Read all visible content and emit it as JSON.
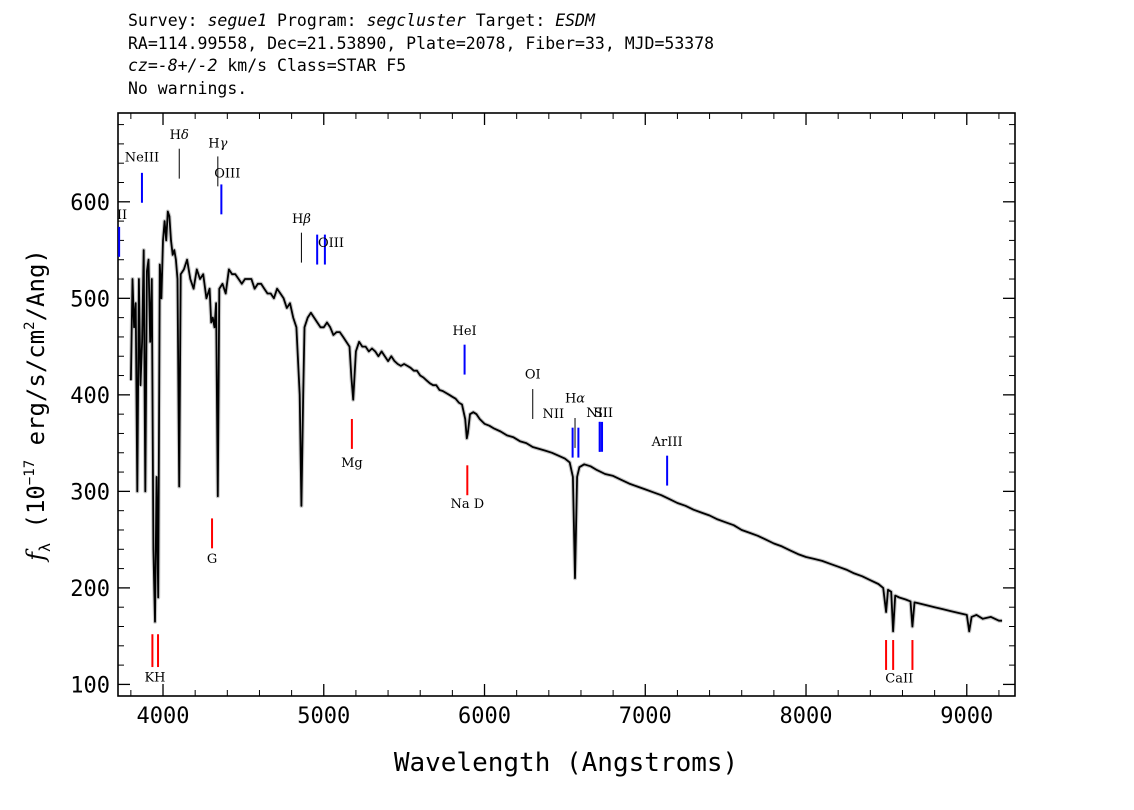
{
  "header": {
    "survey_label": "Survey: ",
    "survey": "segue1",
    "program_label": " Program: ",
    "program": "segcluster",
    "target_label": " Target: ",
    "target": "ESDM",
    "line2": "RA=114.99558, Dec=21.53890, Plate=2078, Fiber=33, MJD=53378",
    "cz_label": "cz",
    "cz_value": "=-8+/-2",
    "cz_rest": " km/s Class=STAR F5",
    "line4": "No warnings."
  },
  "chart_data": {
    "type": "line",
    "title": "",
    "xlabel": "Wavelength (Angstroms)",
    "ylabel_prefix": "f",
    "ylabel_sub": "λ",
    "ylabel_main": " (10",
    "ylabel_exp": "−17",
    "ylabel_mid": " erg/s/cm",
    "ylabel_exp2": "2",
    "ylabel_end": "/Ang)",
    "xlim": [
      3720,
      9300
    ],
    "ylim": [
      88,
      692
    ],
    "grid": false,
    "xticks": [
      4000,
      5000,
      6000,
      7000,
      8000,
      9000
    ],
    "xtick_labels": [
      "4000",
      "5000",
      "6000",
      "7000",
      "8000",
      "9000"
    ],
    "yticks": [
      100,
      200,
      300,
      400,
      500,
      600
    ],
    "ytick_labels": [
      "100",
      "200",
      "300",
      "400",
      "500",
      "600"
    ],
    "series": [
      {
        "color": "#000000",
        "points": [
          [
            3800,
            415
          ],
          [
            3810,
            520
          ],
          [
            3820,
            470
          ],
          [
            3830,
            495
          ],
          [
            3840,
            300
          ],
          [
            3850,
            520
          ],
          [
            3860,
            410
          ],
          [
            3870,
            455
          ],
          [
            3880,
            550
          ],
          [
            3890,
            300
          ],
          [
            3900,
            528
          ],
          [
            3910,
            540
          ],
          [
            3920,
            455
          ],
          [
            3930,
            520
          ],
          [
            3940,
            240
          ],
          [
            3950,
            165
          ],
          [
            3960,
            315
          ],
          [
            3970,
            190
          ],
          [
            3980,
            535
          ],
          [
            3990,
            500
          ],
          [
            4000,
            560
          ],
          [
            4010,
            580
          ],
          [
            4020,
            560
          ],
          [
            4030,
            590
          ],
          [
            4040,
            585
          ],
          [
            4050,
            560
          ],
          [
            4060,
            545
          ],
          [
            4070,
            550
          ],
          [
            4080,
            540
          ],
          [
            4090,
            520
          ],
          [
            4101,
            305
          ],
          [
            4110,
            525
          ],
          [
            4130,
            530
          ],
          [
            4150,
            540
          ],
          [
            4170,
            520
          ],
          [
            4190,
            510
          ],
          [
            4210,
            530
          ],
          [
            4230,
            520
          ],
          [
            4250,
            525
          ],
          [
            4270,
            500
          ],
          [
            4290,
            510
          ],
          [
            4300,
            475
          ],
          [
            4310,
            480
          ],
          [
            4320,
            470
          ],
          [
            4330,
            495
          ],
          [
            4341,
            295
          ],
          [
            4350,
            510
          ],
          [
            4370,
            515
          ],
          [
            4390,
            505
          ],
          [
            4410,
            530
          ],
          [
            4430,
            525
          ],
          [
            4450,
            525
          ],
          [
            4470,
            520
          ],
          [
            4490,
            515
          ],
          [
            4510,
            520
          ],
          [
            4530,
            520
          ],
          [
            4550,
            520
          ],
          [
            4570,
            510
          ],
          [
            4590,
            515
          ],
          [
            4610,
            515
          ],
          [
            4630,
            510
          ],
          [
            4650,
            505
          ],
          [
            4670,
            505
          ],
          [
            4690,
            500
          ],
          [
            4710,
            510
          ],
          [
            4730,
            505
          ],
          [
            4750,
            500
          ],
          [
            4770,
            490
          ],
          [
            4790,
            495
          ],
          [
            4810,
            480
          ],
          [
            4830,
            470
          ],
          [
            4850,
            400
          ],
          [
            4861,
            285
          ],
          [
            4872,
            400
          ],
          [
            4880,
            470
          ],
          [
            4900,
            480
          ],
          [
            4920,
            485
          ],
          [
            4940,
            480
          ],
          [
            4960,
            475
          ],
          [
            4980,
            470
          ],
          [
            5000,
            470
          ],
          [
            5020,
            475
          ],
          [
            5040,
            470
          ],
          [
            5060,
            462
          ],
          [
            5080,
            465
          ],
          [
            5100,
            465
          ],
          [
            5120,
            460
          ],
          [
            5140,
            455
          ],
          [
            5160,
            450
          ],
          [
            5172,
            418
          ],
          [
            5183,
            395
          ],
          [
            5200,
            445
          ],
          [
            5220,
            455
          ],
          [
            5240,
            450
          ],
          [
            5260,
            450
          ],
          [
            5280,
            445
          ],
          [
            5300,
            448
          ],
          [
            5320,
            445
          ],
          [
            5340,
            440
          ],
          [
            5360,
            445
          ],
          [
            5380,
            440
          ],
          [
            5400,
            435
          ],
          [
            5420,
            440
          ],
          [
            5440,
            435
          ],
          [
            5460,
            432
          ],
          [
            5480,
            430
          ],
          [
            5500,
            432
          ],
          [
            5520,
            430
          ],
          [
            5540,
            428
          ],
          [
            5560,
            425
          ],
          [
            5580,
            425
          ],
          [
            5600,
            420
          ],
          [
            5620,
            418
          ],
          [
            5640,
            415
          ],
          [
            5660,
            412
          ],
          [
            5680,
            410
          ],
          [
            5700,
            410
          ],
          [
            5720,
            405
          ],
          [
            5740,
            404
          ],
          [
            5760,
            402
          ],
          [
            5780,
            400
          ],
          [
            5800,
            398
          ],
          [
            5820,
            396
          ],
          [
            5840,
            392
          ],
          [
            5860,
            390
          ],
          [
            5880,
            375
          ],
          [
            5890,
            355
          ],
          [
            5896,
            360
          ],
          [
            5910,
            380
          ],
          [
            5930,
            382
          ],
          [
            5950,
            380
          ],
          [
            5970,
            375
          ],
          [
            6000,
            370
          ],
          [
            6030,
            368
          ],
          [
            6060,
            365
          ],
          [
            6100,
            362
          ],
          [
            6140,
            358
          ],
          [
            6180,
            356
          ],
          [
            6220,
            352
          ],
          [
            6260,
            350
          ],
          [
            6300,
            346
          ],
          [
            6340,
            344
          ],
          [
            6380,
            342
          ],
          [
            6420,
            340
          ],
          [
            6460,
            337
          ],
          [
            6500,
            334
          ],
          [
            6530,
            330
          ],
          [
            6550,
            315
          ],
          [
            6563,
            210
          ],
          [
            6576,
            315
          ],
          [
            6590,
            325
          ],
          [
            6620,
            328
          ],
          [
            6660,
            326
          ],
          [
            6700,
            322
          ],
          [
            6750,
            318
          ],
          [
            6800,
            316
          ],
          [
            6850,
            312
          ],
          [
            6900,
            308
          ],
          [
            6950,
            305
          ],
          [
            7000,
            302
          ],
          [
            7050,
            299
          ],
          [
            7100,
            296
          ],
          [
            7150,
            292
          ],
          [
            7200,
            288
          ],
          [
            7250,
            285
          ],
          [
            7300,
            281
          ],
          [
            7350,
            278
          ],
          [
            7400,
            275
          ],
          [
            7450,
            271
          ],
          [
            7500,
            268
          ],
          [
            7550,
            265
          ],
          [
            7600,
            260
          ],
          [
            7650,
            257
          ],
          [
            7700,
            254
          ],
          [
            7750,
            250
          ],
          [
            7800,
            246
          ],
          [
            7850,
            243
          ],
          [
            7900,
            239
          ],
          [
            7950,
            235
          ],
          [
            8000,
            232
          ],
          [
            8050,
            230
          ],
          [
            8100,
            228
          ],
          [
            8150,
            225
          ],
          [
            8200,
            222
          ],
          [
            8250,
            219
          ],
          [
            8300,
            215
          ],
          [
            8350,
            212
          ],
          [
            8400,
            208
          ],
          [
            8450,
            204
          ],
          [
            8480,
            200
          ],
          [
            8498,
            175
          ],
          [
            8510,
            198
          ],
          [
            8530,
            196
          ],
          [
            8542,
            155
          ],
          [
            8555,
            192
          ],
          [
            8580,
            190
          ],
          [
            8620,
            188
          ],
          [
            8650,
            186
          ],
          [
            8662,
            160
          ],
          [
            8675,
            185
          ],
          [
            8700,
            184
          ],
          [
            8750,
            182
          ],
          [
            8800,
            180
          ],
          [
            8850,
            178
          ],
          [
            8900,
            176
          ],
          [
            8950,
            174
          ],
          [
            9000,
            172
          ],
          [
            9015,
            155
          ],
          [
            9030,
            170
          ],
          [
            9060,
            172
          ],
          [
            9100,
            168
          ],
          [
            9150,
            170
          ],
          [
            9200,
            166
          ],
          [
            9220,
            166
          ]
        ]
      }
    ],
    "line_markers": [
      {
        "label": "KH",
        "color": "#ff0000",
        "bars": [
          {
            "x": 3934,
            "y1": 152,
            "y2": 118
          },
          {
            "x": 3969,
            "y1": 152,
            "y2": 118
          }
        ],
        "label_x": 3950,
        "label_y": 103
      },
      {
        "label": "G",
        "color": "#ff0000",
        "bars": [
          {
            "x": 4305,
            "y1": 272,
            "y2": 241
          }
        ],
        "label_x": 4305,
        "label_y": 226
      },
      {
        "label": "Mg",
        "color": "#ff0000",
        "bars": [
          {
            "x": 5175,
            "y1": 375,
            "y2": 344
          }
        ],
        "label_x": 5175,
        "label_y": 325
      },
      {
        "label": "Na D",
        "color": "#ff0000",
        "bars": [
          {
            "x": 5893,
            "y1": 327,
            "y2": 296
          }
        ],
        "label_x": 5893,
        "label_y": 283
      },
      {
        "label": "CaII",
        "color": "#ff0000",
        "bars": [
          {
            "x": 8498,
            "y1": 146,
            "y2": 115
          },
          {
            "x": 8542,
            "y1": 146,
            "y2": 115
          },
          {
            "x": 8662,
            "y1": 146,
            "y2": 115
          }
        ],
        "label_x": 8580,
        "label_y": 102
      },
      {
        "label": "H",
        "sub": "δ",
        "color": "#000000",
        "bars": [
          {
            "x": 4101,
            "y1": 655,
            "y2": 624
          }
        ],
        "label_x": 4101,
        "label_y": 665
      },
      {
        "label": "H",
        "sub": "γ",
        "color": "#000000",
        "bars": [
          {
            "x": 4341,
            "y1": 647,
            "y2": 616
          }
        ],
        "label_x": 4341,
        "label_y": 656
      },
      {
        "label": "H",
        "sub": "β",
        "color": "#000000",
        "bars": [
          {
            "x": 4861,
            "y1": 568,
            "y2": 537
          }
        ],
        "label_x": 4861,
        "label_y": 578
      },
      {
        "label": "H",
        "sub": "α",
        "color": "#000000",
        "bars": [
          {
            "x": 6563,
            "y1": 376,
            "y2": 345
          }
        ],
        "label_x": 6563,
        "label_y": 392
      },
      {
        "label": "OI",
        "color": "#000000",
        "bars": [
          {
            "x": 6300,
            "y1": 406,
            "y2": 375
          }
        ],
        "label_x": 6300,
        "label_y": 417
      },
      {
        "label": "NeIII",
        "color": "#0000ff",
        "bars": [
          {
            "x": 3869,
            "y1": 630,
            "y2": 599
          }
        ],
        "label_x": 3869,
        "label_y": 642
      },
      {
        "label": "OIII",
        "color": "#0000ff",
        "bars": [
          {
            "x": 4363,
            "y1": 618,
            "y2": 587
          }
        ],
        "label_x": 4400,
        "label_y": 625
      },
      {
        "label": "II",
        "color": "#0000ff",
        "bars": [
          {
            "x": 3727,
            "y1": 574,
            "y2": 543
          }
        ],
        "label_x": 3745,
        "label_y": 582
      },
      {
        "label": "OIII",
        "color": "#0000ff",
        "bars": [
          {
            "x": 4959,
            "y1": 566,
            "y2": 535
          },
          {
            "x": 5007,
            "y1": 566,
            "y2": 535
          }
        ],
        "label_x": 5045,
        "label_y": 553
      },
      {
        "label": "HeI",
        "color": "#0000ff",
        "bars": [
          {
            "x": 5876,
            "y1": 452,
            "y2": 421
          }
        ],
        "label_x": 5876,
        "label_y": 462
      },
      {
        "label": "NII",
        "color": "#0000ff",
        "bars": [
          {
            "x": 6548,
            "y1": 366,
            "y2": 335
          },
          {
            "x": 6584,
            "y1": 366,
            "y2": 335
          }
        ],
        "label_x": 6428,
        "label_y": 376
      },
      {
        "label": "SII",
        "color": "#0000ff",
        "bars": [
          {
            "x": 6717,
            "y1": 372,
            "y2": 341
          },
          {
            "x": 6731,
            "y1": 372,
            "y2": 341
          }
        ],
        "label_x": 6740,
        "label_y": 377
      },
      {
        "label": "NII",
        "color": "#0000ff",
        "bars": [
          {
            "x": 6717,
            "y1": 372,
            "y2": 341
          }
        ],
        "label_x": 6700,
        "label_y": 377
      },
      {
        "label": "ArIII",
        "color": "#0000ff",
        "bars": [
          {
            "x": 7136,
            "y1": 337,
            "y2": 306
          }
        ],
        "label_x": 7136,
        "label_y": 347
      }
    ]
  }
}
